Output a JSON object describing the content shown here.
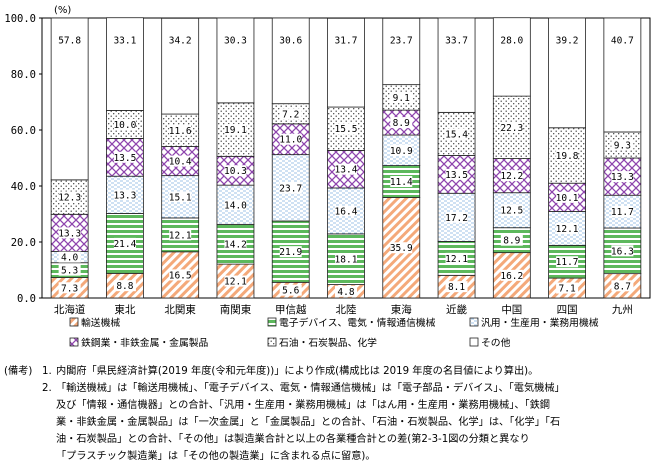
{
  "chart_data": {
    "type": "bar",
    "stacked": true,
    "unit_label": "(%)",
    "ylim": [
      0,
      100
    ],
    "yticks": [
      "0.0",
      "20.0",
      "40.0",
      "60.0",
      "80.0",
      "100.0"
    ],
    "categories": [
      "北海道",
      "東北",
      "北関東",
      "南関東",
      "甲信越",
      "北陸",
      "東海",
      "近畿",
      "中国",
      "四国",
      "九州"
    ],
    "series": [
      {
        "name": "輸送機械",
        "key": "transport",
        "color": "#f4a97a",
        "values": [
          7.3,
          8.8,
          16.5,
          12.1,
          5.6,
          4.8,
          35.9,
          8.1,
          16.2,
          7.1,
          8.7
        ]
      },
      {
        "name": "電子デバイス、電気・情報通信機械",
        "key": "electronics",
        "color": "#5cb85c",
        "values": [
          5.3,
          21.4,
          12.1,
          14.2,
          21.9,
          18.1,
          11.4,
          12.1,
          8.9,
          11.7,
          16.3
        ]
      },
      {
        "name": "汎用・生産用・業務用機械",
        "key": "machinery",
        "color": "#9fc3e7",
        "values": [
          4.0,
          13.3,
          15.1,
          14.0,
          23.7,
          16.4,
          10.9,
          17.2,
          12.5,
          12.1,
          11.7
        ]
      },
      {
        "name": "鉄鋼業・非鉄金属・金属製品",
        "key": "metals",
        "color": "#8e44ad",
        "values": [
          13.3,
          13.5,
          10.4,
          10.3,
          11.0,
          13.4,
          8.9,
          13.5,
          12.2,
          10.1,
          13.3
        ]
      },
      {
        "name": "石油・石炭製品、化学",
        "key": "chemicals",
        "color": "#444444",
        "values": [
          12.3,
          10.0,
          11.6,
          19.1,
          7.2,
          15.5,
          9.1,
          15.4,
          22.3,
          19.8,
          9.3
        ]
      },
      {
        "name": "その他",
        "key": "other",
        "color": "#ffffff",
        "values": [
          57.8,
          33.1,
          34.2,
          30.3,
          30.6,
          31.7,
          23.7,
          33.7,
          28.0,
          39.2,
          40.7
        ]
      }
    ],
    "legend_placement": "bottom"
  },
  "notes": {
    "label": "(備考)",
    "items": [
      {
        "num": "1.",
        "lines": [
          "内閣府「県民経済計算(2019 年度(令和元年度))」により作成(構成比は 2019 年度の名目値により算出)。"
        ]
      },
      {
        "num": "2.",
        "lines": [
          "「輸送機械」は「輸送用機械」、「電子デバイス、電気・情報通信機械」は「電子部品・デバイス」、「電気機械」",
          "及び「情報・通信機器」との合計、「汎用・生産用・業務用機械」は「はん用・生産用・業務用機械」、「鉄鋼",
          "業・非鉄金属・金属製品」は「一次金属」と「金属製品」との合計、「石油・石炭製品、化学」は、「化学」「石",
          "油・石炭製品」との合計、「その他」は製造業合計と以上の各業種合計との差(第2-3-1図の分類と異なり",
          "「プラスチック製造業」は「その他の製造業」に含まれる点に留意)。"
        ]
      }
    ]
  }
}
